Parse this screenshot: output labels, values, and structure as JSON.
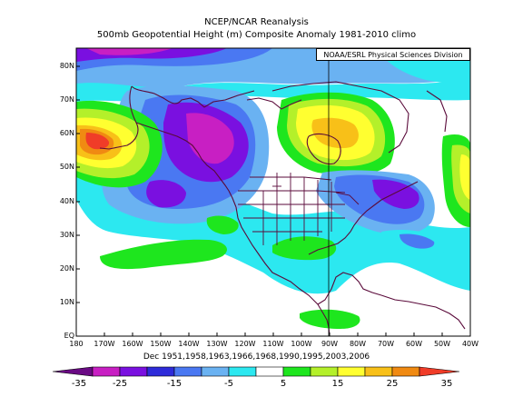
{
  "title": "NCEP/NCAR Reanalysis",
  "subtitle": "500mb Geopotential Height (m) Composite Anomaly 1981-2010 climo",
  "credit": "NOAA/ESRL Physical Sciences Division",
  "dates": "Dec 1951,1958,1963,1966,1968,1990,1995,2003,2006",
  "lat_labels": [
    "80N",
    "70N",
    "60N",
    "50N",
    "40N",
    "30N",
    "20N",
    "10N",
    "EQ"
  ],
  "lon_labels": [
    "180",
    "170W",
    "160W",
    "150W",
    "140W",
    "130W",
    "120W",
    "110W",
    "100W",
    "90W",
    "80W",
    "70W",
    "60W",
    "50W",
    "40W"
  ],
  "colorbar": {
    "labels": [
      "-35",
      "-25",
      "-15",
      "-5",
      "5",
      "15",
      "25",
      "35"
    ],
    "colors": [
      "#6a0a84",
      "#c81fc3",
      "#7a10e0",
      "#2e2bd9",
      "#4a78f2",
      "#6ab2f2",
      "#2ce8f0",
      "#ffffff",
      "#1ee61e",
      "#b4f02a",
      "#ffff30",
      "#f8c018",
      "#f08a12",
      "#f03c28"
    ]
  },
  "map": {
    "lat_range": [
      0,
      85
    ],
    "lon_range": [
      "180",
      "40W"
    ],
    "projection": "equirectangular"
  }
}
